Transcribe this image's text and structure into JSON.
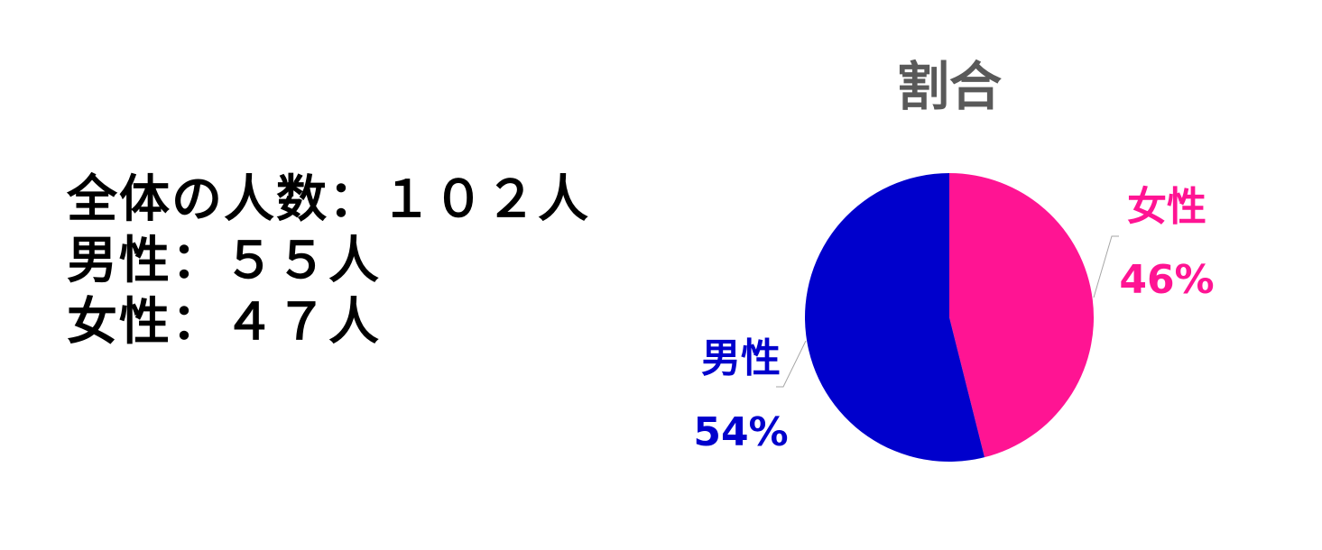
{
  "summary": {
    "lines": [
      "全体の人数：１０２人",
      "男性：５５人",
      "女性：４７人"
    ]
  },
  "chart_data": {
    "type": "pie",
    "title": "割合",
    "start_angle": "12 o'clock",
    "direction": "clockwise",
    "slices": [
      {
        "name": "女性",
        "value": 47,
        "label": "46%",
        "color": "#ff1493"
      },
      {
        "name": "男性",
        "value": 55,
        "label": "54%",
        "color": "#0000cc"
      }
    ],
    "leader_line_color": "#a6a6a6"
  }
}
